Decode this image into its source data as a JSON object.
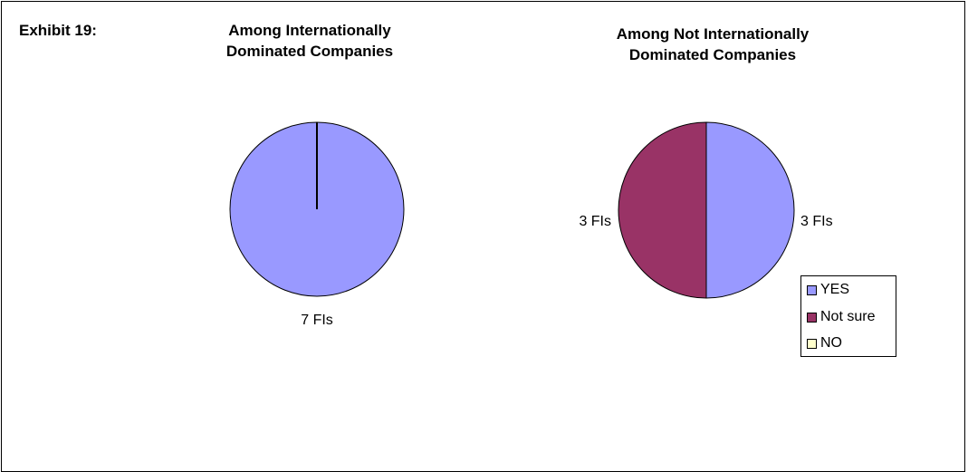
{
  "exhibit_label": "Exhibit 19:",
  "chart_data": [
    {
      "type": "pie",
      "title_lines": [
        "Among Internationally",
        "Dominated Companies"
      ],
      "slices": [
        {
          "name": "YES",
          "value": 7,
          "label": "7 FIs"
        },
        {
          "name": "Not sure",
          "value": 0,
          "label": ""
        },
        {
          "name": "NO",
          "value": 0,
          "label": ""
        }
      ]
    },
    {
      "type": "pie",
      "title_lines": [
        "Among Not Internationally",
        "Dominated Companies"
      ],
      "slices": [
        {
          "name": "YES",
          "value": 3,
          "label": "3 FIs"
        },
        {
          "name": "Not sure",
          "value": 3,
          "label": "3 FIs"
        },
        {
          "name": "NO",
          "value": 0,
          "label": ""
        }
      ],
      "legend": {
        "placement": "bottom-right",
        "items": [
          {
            "name": "YES",
            "color": "#9999ff"
          },
          {
            "name": "Not sure",
            "color": "#993366"
          },
          {
            "name": "NO",
            "color": "#ffffcc"
          }
        ]
      }
    }
  ]
}
